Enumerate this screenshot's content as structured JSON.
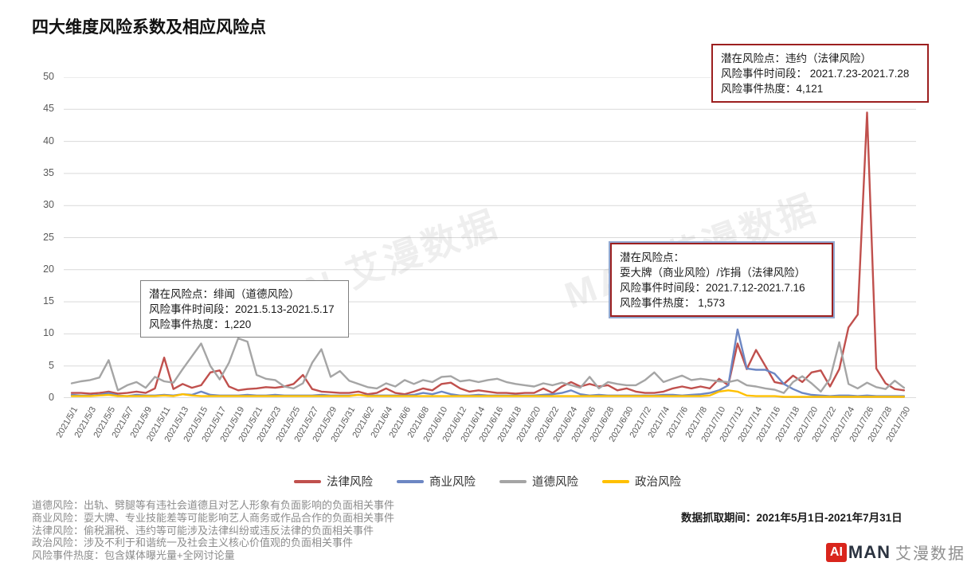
{
  "title": "四大维度风险系数及相应风险点",
  "watermark": "MAN 艾漫数据",
  "chart_data": {
    "type": "line",
    "title": "四大维度风险系数及相应风险点",
    "xlabel": "",
    "ylabel": "",
    "ylim": [
      0,
      50
    ],
    "y_ticks": [
      0,
      5,
      10,
      15,
      20,
      25,
      30,
      35,
      40,
      45,
      50
    ],
    "grid": "horizontal",
    "legend_position": "bottom",
    "x_labels": [
      "2021/5/1",
      "2021/5/3",
      "2021/5/5",
      "2021/5/7",
      "2021/5/9",
      "2021/5/11",
      "2021/5/13",
      "2021/5/15",
      "2021/5/17",
      "2021/5/19",
      "2021/5/21",
      "2021/5/23",
      "2021/5/25",
      "2021/5/27",
      "2021/5/29",
      "2021/5/31",
      "2021/6/2",
      "2021/6/4",
      "2021/6/6",
      "2021/6/8",
      "2021/6/10",
      "2021/6/12",
      "2021/6/14",
      "2021/6/16",
      "2021/6/18",
      "2021/6/20",
      "2021/6/22",
      "2021/6/24",
      "2021/6/26",
      "2021/6/28",
      "2021/6/30",
      "2021/7/2",
      "2021/7/4",
      "2021/7/6",
      "2021/7/8",
      "2021/7/10",
      "2021/7/12",
      "2021/7/14",
      "2021/7/16",
      "2021/7/18",
      "2021/7/20",
      "2021/7/22",
      "2021/7/24",
      "2021/7/26",
      "2021/7/28",
      "2021/7/30"
    ],
    "x_label_step_days": 2,
    "series": [
      {
        "name": "法律风险",
        "color": "#c0504d",
        "values": [
          0.8,
          0.8,
          0.7,
          0.8,
          1.0,
          0.7,
          0.8,
          1.0,
          0.8,
          1.5,
          6.3,
          1.4,
          2.2,
          1.6,
          2.0,
          4.0,
          4.3,
          1.8,
          1.2,
          1.4,
          1.5,
          1.7,
          1.6,
          1.8,
          2.2,
          3.6,
          1.4,
          1.0,
          0.9,
          0.8,
          0.8,
          1.0,
          0.6,
          0.8,
          1.5,
          0.8,
          0.6,
          1.0,
          1.5,
          1.2,
          2.2,
          2.4,
          1.5,
          1.0,
          1.2,
          1.0,
          0.8,
          0.8,
          0.7,
          0.8,
          0.8,
          1.5,
          0.8,
          1.8,
          2.5,
          1.8,
          2.2,
          1.8,
          2.0,
          1.2,
          1.5,
          1.0,
          0.8,
          0.8,
          1.0,
          1.5,
          1.8,
          1.5,
          1.8,
          1.5,
          3.0,
          2.0,
          8.5,
          4.5,
          7.5,
          5.0,
          2.5,
          2.2,
          3.5,
          2.5,
          4.0,
          4.3,
          1.8,
          4.5,
          11.0,
          13.0,
          44.5,
          4.6,
          2.3,
          1.4,
          1.2
        ]
      },
      {
        "name": "商业风险",
        "color": "#6d87c3",
        "values": [
          0.5,
          0.4,
          0.4,
          0.5,
          0.8,
          0.4,
          0.3,
          0.5,
          0.4,
          0.4,
          0.5,
          0.4,
          0.6,
          0.5,
          1.0,
          0.5,
          0.4,
          0.4,
          0.4,
          0.5,
          0.4,
          0.4,
          0.5,
          0.4,
          0.4,
          0.4,
          0.4,
          0.5,
          0.4,
          0.4,
          0.4,
          0.5,
          0.4,
          0.4,
          0.4,
          0.4,
          0.4,
          0.5,
          0.8,
          0.6,
          1.0,
          0.6,
          0.4,
          0.4,
          0.5,
          0.4,
          0.4,
          0.4,
          0.4,
          0.4,
          0.4,
          0.5,
          0.6,
          0.8,
          1.2,
          0.6,
          0.4,
          0.5,
          0.4,
          0.4,
          0.4,
          0.4,
          0.4,
          0.4,
          0.5,
          0.5,
          0.4,
          0.5,
          0.6,
          0.8,
          1.2,
          2.0,
          10.7,
          4.6,
          4.4,
          4.4,
          3.8,
          2.2,
          1.4,
          0.8,
          0.5,
          0.4,
          0.3,
          0.4,
          0.4,
          0.3,
          0.4,
          0.3,
          0.3,
          0.3,
          0.3
        ]
      },
      {
        "name": "道德风险",
        "color": "#a5a5a5",
        "values": [
          2.3,
          2.6,
          2.8,
          3.2,
          5.9,
          1.2,
          2.0,
          2.5,
          1.6,
          3.3,
          2.6,
          2.4,
          4.5,
          6.5,
          8.5,
          5.0,
          2.9,
          5.5,
          9.3,
          8.8,
          3.6,
          3.0,
          2.8,
          1.8,
          1.5,
          2.3,
          5.5,
          7.6,
          3.3,
          4.2,
          2.7,
          2.2,
          1.7,
          1.5,
          2.3,
          1.8,
          2.8,
          2.2,
          2.8,
          2.5,
          3.3,
          3.4,
          2.6,
          2.8,
          2.5,
          2.8,
          3.0,
          2.5,
          2.2,
          2.0,
          1.8,
          2.3,
          2.0,
          2.4,
          2.0,
          1.6,
          3.3,
          1.5,
          2.5,
          2.2,
          2.0,
          2.0,
          2.8,
          4.0,
          2.5,
          3.0,
          3.5,
          2.8,
          3.0,
          2.8,
          2.6,
          2.5,
          2.8,
          2.0,
          1.8,
          1.5,
          1.3,
          0.8,
          2.5,
          3.4,
          2.3,
          1.0,
          3.0,
          8.7,
          2.2,
          1.5,
          2.4,
          1.7,
          1.4,
          2.7,
          1.6
        ]
      },
      {
        "name": "政治风险",
        "color": "#ffc000",
        "values": [
          0.3,
          0.3,
          0.3,
          0.4,
          0.5,
          0.3,
          0.3,
          0.3,
          0.3,
          0.3,
          0.4,
          0.3,
          0.6,
          0.4,
          0.3,
          0.3,
          0.3,
          0.3,
          0.3,
          0.3,
          0.3,
          0.3,
          0.3,
          0.3,
          0.3,
          0.3,
          0.3,
          0.3,
          0.3,
          0.3,
          0.3,
          0.5,
          0.3,
          0.3,
          0.3,
          0.3,
          0.3,
          0.3,
          0.3,
          0.3,
          0.3,
          0.3,
          0.3,
          0.3,
          0.3,
          0.3,
          0.3,
          0.3,
          0.3,
          0.3,
          0.3,
          0.3,
          0.3,
          0.3,
          0.3,
          0.3,
          0.3,
          0.3,
          0.3,
          0.3,
          0.3,
          0.3,
          0.3,
          0.3,
          0.3,
          0.3,
          0.3,
          0.3,
          0.3,
          0.4,
          1.0,
          1.2,
          1.0,
          0.4,
          0.3,
          0.3,
          0.3,
          0.2,
          0.2,
          0.2,
          0.2,
          0.2,
          0.2,
          0.2,
          0.2,
          0.2,
          0.2,
          0.2,
          0.2,
          0.2,
          0.2
        ]
      }
    ]
  },
  "annotations": {
    "moral": {
      "lines": [
        "潜在风险点：绯闻（道德风险）",
        "风险事件时间段：2021.5.13-2021.5.17",
        "风险事件热度：1,220"
      ]
    },
    "mid": {
      "lines": [
        "潜在风险点：",
        "耍大牌（商业风险）/诈捐（法律风险）",
        "风险事件时间段：2021.7.12-2021.7.16",
        "风险事件热度： 1,573"
      ]
    },
    "legal": {
      "lines": [
        "潜在风险点：违约（法律风险）",
        "风险事件时间段： 2021.7.23-2021.7.28",
        "风险事件热度：4,121"
      ]
    }
  },
  "footnotes": [
    "道德风险：出轨、劈腿等有违社会道德且对艺人形象有负面影响的负面相关事件",
    "商业风险：耍大牌、专业技能差等可能影响艺人商务或作品合作的负面相关事件",
    "法律风险：偷税漏税、违约等可能涉及法律纠纷或违反法律的负面相关事件",
    "政治风险：涉及不利于和谐统一及社会主义核心价值观的负面相关事件",
    "风险事件热度：包含媒体曝光量+全网讨论量"
  ],
  "capture_period": "数据抓取期间：2021年5月1日-2021年7月31日",
  "logo": {
    "ai": "AI",
    "man": "MAN",
    "cn": "艾漫数据"
  }
}
